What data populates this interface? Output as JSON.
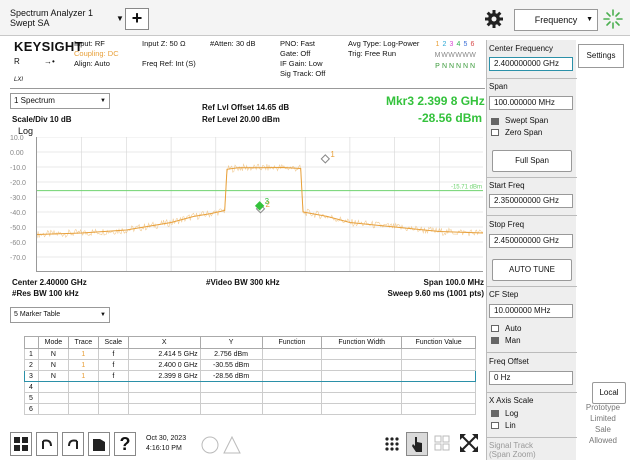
{
  "titlebar": {
    "title_line1": "Spectrum Analyzer 1",
    "title_line2": "Swept SA",
    "add_button": "+",
    "menu_label": "Frequency"
  },
  "header": {
    "logo": "KEYSIGHT",
    "r_label": "R",
    "lxi_label": "LXI",
    "input": "Input: RF",
    "coupling": "Coupling: DC",
    "align": "Align: Auto",
    "input_z": "Input Z: 50 Ω",
    "freq_ref": "Freq Ref: Int (S)",
    "atten": "#Atten: 30 dB",
    "pno": "PNO: Fast",
    "gate": "Gate: Off",
    "if_gain": "IF Gain: Low",
    "sig_track": "Sig Track: Off",
    "avg_type": "Avg Type: Log-Power",
    "trig": "Trig: Free Run",
    "trace_nums": [
      "1",
      "2",
      "3",
      "4",
      "5",
      "6"
    ],
    "trace_types": [
      "M",
      "W",
      "W",
      "W",
      "W",
      "W"
    ],
    "trace_dets": [
      "P",
      "N",
      "N",
      "N",
      "N",
      "N"
    ],
    "trace_colors": [
      "#e8a03a",
      "#29a7d6",
      "#d64ad1",
      "#29b44a",
      "#3a6fd6",
      "#d64a4a"
    ]
  },
  "spectrum": {
    "window_label": "1 Spectrum",
    "scale_div": "Scale/Div 10 dB",
    "ref_lvl_offset": "Ref Lvl Offset 14.65 dB",
    "ref_level": "Ref Level 20.00 dBm",
    "mkr_label": "Mkr3  2.399 8 GHz",
    "mkr_amp": "-28.56 dBm",
    "log_label": "Log",
    "ref_line_label": "-15.71 dBm",
    "center": "Center 2.40000 GHz",
    "res_bw": "#Res BW 100 kHz",
    "vbw": "#Video BW 300 kHz",
    "span": "Span 100.0 MHz",
    "sweep": "Sweep 9.60 ms (1001 pts)",
    "marker_labels": [
      "1",
      "2",
      "3"
    ]
  },
  "chart_data": {
    "type": "line",
    "x_range": [
      2.35,
      2.45
    ],
    "x_unit": "GHz",
    "ylim": [
      -70,
      20
    ],
    "y_unit": "dBm",
    "y_ticks": [
      "10.0",
      "0.00",
      "-10.0",
      "-20.0",
      "-30.0",
      "-40.0",
      "-50.0",
      "-60.0",
      "-70.0"
    ],
    "display_line": -15.71,
    "series": [
      {
        "x": [
          2.35,
          2.36,
          2.37,
          2.38,
          2.385,
          2.389,
          2.392,
          2.3925,
          2.395,
          2.4,
          2.405,
          2.409,
          2.4095,
          2.415,
          2.42,
          2.43,
          2.44,
          2.45
        ],
        "y": [
          -45,
          -44,
          -42,
          -37,
          -33,
          -31,
          -29,
          -1.5,
          -0.5,
          -0.5,
          -0.3,
          -1.0,
          -30,
          -33,
          -37,
          -40,
          -43,
          -44
        ]
      }
    ],
    "markers": [
      {
        "label": "1",
        "x": 2.4145,
        "y": 2.756
      },
      {
        "label": "2",
        "x": 2.4,
        "y": -30.55
      },
      {
        "label": "3",
        "x": 2.3998,
        "y": -28.56
      }
    ]
  },
  "marker_table": {
    "selector_label": "5 Marker Table",
    "columns": [
      "",
      "Mode",
      "Trace",
      "Scale",
      "X",
      "Y",
      "Function",
      "Function Width",
      "Function Value"
    ],
    "rows": [
      {
        "num": "1",
        "mode": "N",
        "trace": "1",
        "scale": "f",
        "x": "2.414 5 GHz",
        "y": "2.756 dBm"
      },
      {
        "num": "2",
        "mode": "N",
        "trace": "1",
        "scale": "f",
        "x": "2.400 0 GHz",
        "y": "-30.55 dBm"
      },
      {
        "num": "3",
        "mode": "N",
        "trace": "1",
        "scale": "f",
        "x": "2.399 8 GHz",
        "y": "-28.56 dBm"
      },
      {
        "num": "4",
        "mode": "",
        "trace": "",
        "scale": "",
        "x": "",
        "y": ""
      },
      {
        "num": "5",
        "mode": "",
        "trace": "",
        "scale": "",
        "x": "",
        "y": ""
      },
      {
        "num": "6",
        "mode": "",
        "trace": "",
        "scale": "",
        "x": "",
        "y": ""
      }
    ],
    "selected_row": 2
  },
  "taskbar": {
    "date": "Oct 30, 2023",
    "time": "4:16:10 PM"
  },
  "right_panel": {
    "center_freq_title": "Center Frequency",
    "center_freq": "2.400000000 GHz",
    "span_title": "Span",
    "span_value": "100.000000 MHz",
    "swept_span": "Swept Span",
    "zero_span": "Zero Span",
    "full_span": "Full Span",
    "start_freq_title": "Start Freq",
    "start_freq": "2.350000000 GHz",
    "stop_freq_title": "Stop Freq",
    "stop_freq": "2.450000000 GHz",
    "auto_tune": "AUTO TUNE",
    "cf_step_title": "CF Step",
    "cf_step": "10.000000 MHz",
    "auto": "Auto",
    "man": "Man",
    "freq_offset_title": "Freq Offset",
    "freq_offset": "0 Hz",
    "xaxis_title": "X Axis Scale",
    "log": "Log",
    "lin": "Lin",
    "signal_track_line1": "Signal Track",
    "signal_track_line2": "(Span Zoom)"
  },
  "side": {
    "settings": "Settings",
    "local": "Local",
    "proto_line1": "Prototype",
    "proto_line2": "Limited",
    "proto_line3": "Sale",
    "proto_line4": "Allowed"
  },
  "colors": {
    "trace": "#e8a03a",
    "marker": "#34c23c",
    "display_line": "#6fd36f",
    "grid": "#d6d6d6",
    "selection": "#2b90a8"
  }
}
